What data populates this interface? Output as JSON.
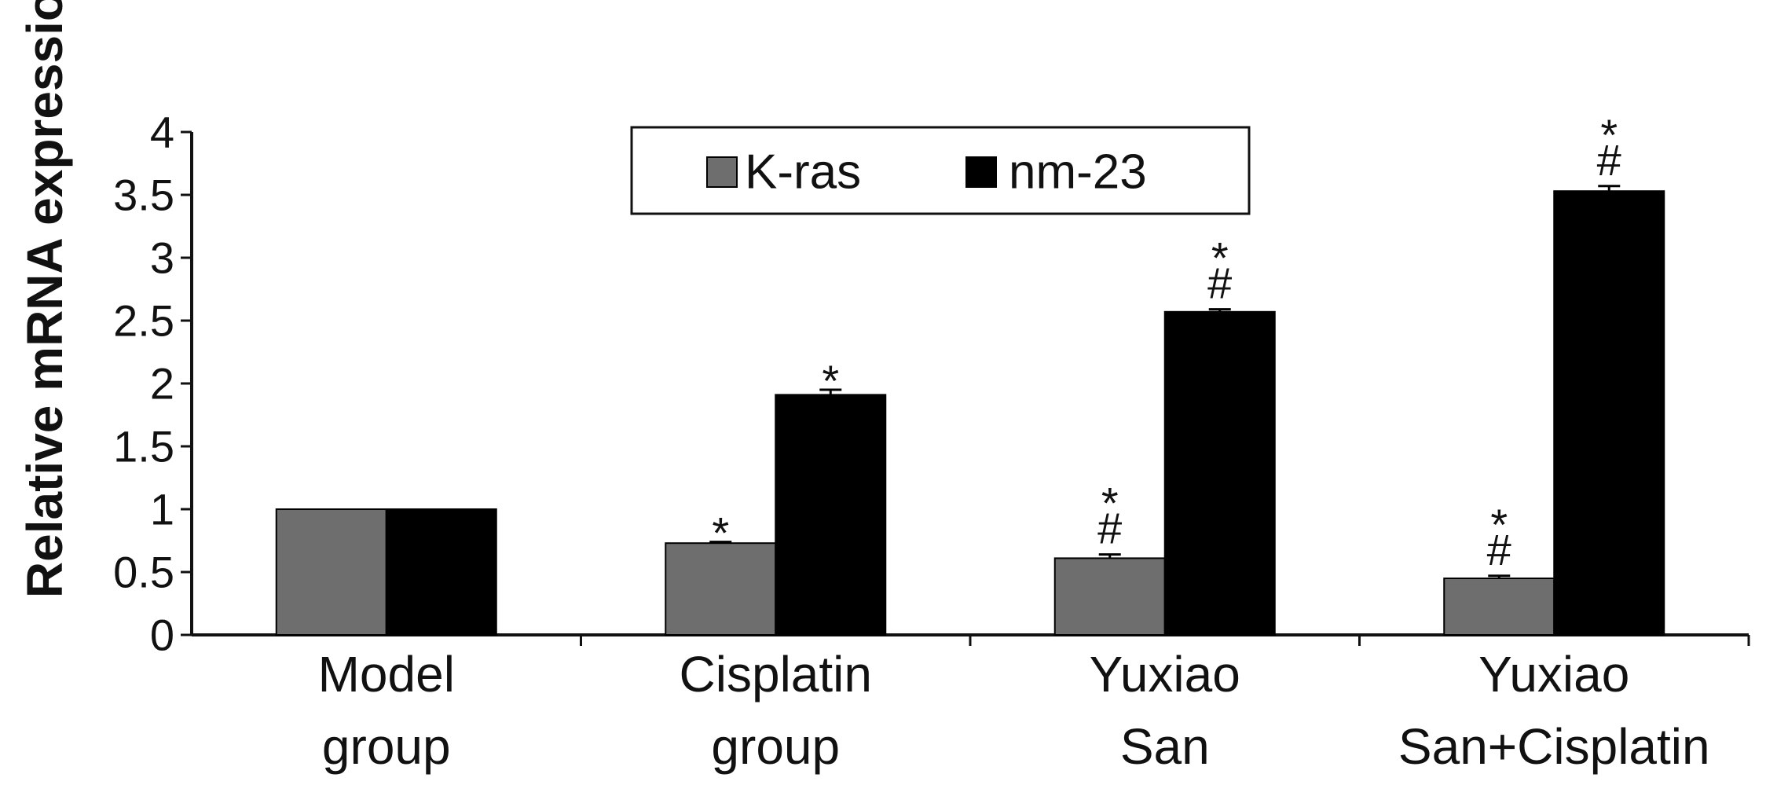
{
  "chart_data": {
    "type": "bar",
    "title": "",
    "xlabel": "",
    "ylabel": "Relative mRNA expression",
    "ylim": [
      0,
      4
    ],
    "yticks": [
      0,
      0.5,
      1,
      1.5,
      2,
      2.5,
      3,
      3.5,
      4
    ],
    "ytick_labels": [
      "0",
      "0.5",
      "1",
      "1.5",
      "2",
      "2.5",
      "3",
      "3.5",
      "4"
    ],
    "categories": [
      [
        "Model",
        "group"
      ],
      [
        "Cisplatin",
        "group"
      ],
      [
        "Yuxiao",
        "San"
      ],
      [
        "Yuxiao",
        "San+Cisplatin"
      ]
    ],
    "series": [
      {
        "name": "K-ras",
        "color": "#6e6e6e",
        "values": [
          1.0,
          0.73,
          0.61,
          0.45
        ],
        "errors": [
          0,
          0.01,
          0.03,
          0.02
        ],
        "annotations": [
          [],
          [
            "*"
          ],
          [
            "*",
            "#"
          ],
          [
            "*",
            "#"
          ]
        ]
      },
      {
        "name": "nm-23",
        "color": "#000000",
        "values": [
          1.0,
          1.91,
          2.57,
          3.53
        ],
        "errors": [
          0,
          0.04,
          0.02,
          0.04
        ],
        "annotations": [
          [],
          [
            "*"
          ],
          [
            "*",
            "#"
          ],
          [
            "*",
            "#"
          ]
        ]
      }
    ],
    "legend": "top-center",
    "grid": false
  }
}
